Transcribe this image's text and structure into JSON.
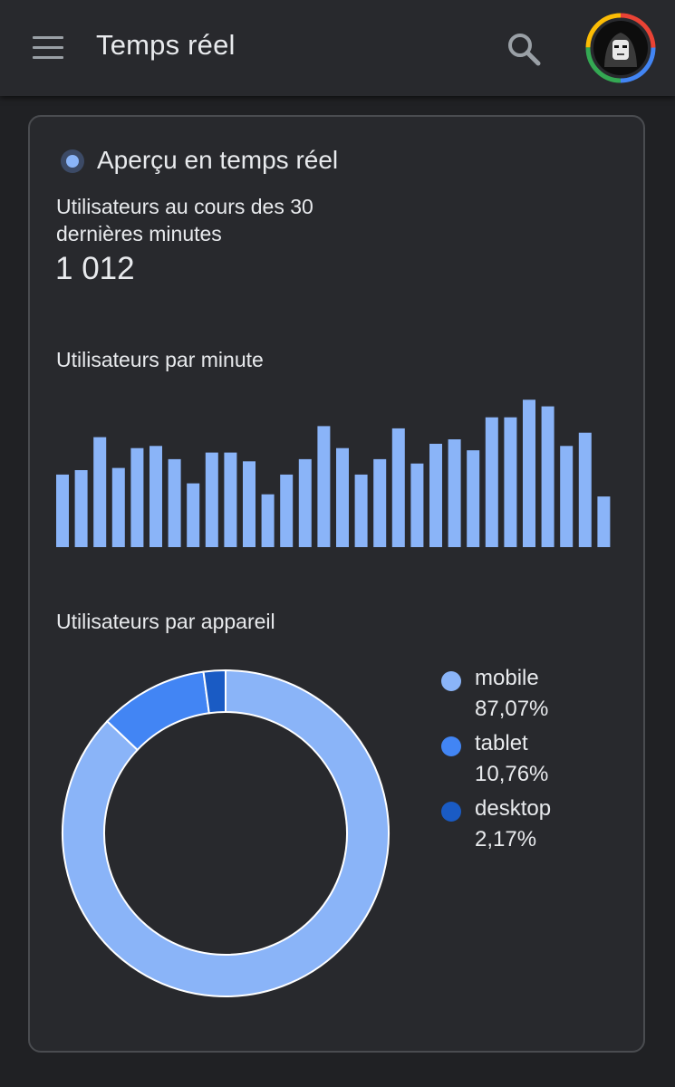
{
  "header": {
    "title": "Temps réel",
    "menu_icon": "hamburger-menu-icon",
    "search_icon": "search-icon",
    "avatar_icon": "user-avatar"
  },
  "card": {
    "title": "Aperçu en temps réel",
    "users_label": "Utilisateurs au cours des 30 dernières minutes",
    "users_value": "1 012",
    "per_minute_label": "Utilisateurs par minute",
    "per_device_label": "Utilisateurs par appareil"
  },
  "colors": {
    "mobile": "#8ab4f8",
    "tablet": "#4285f4",
    "desktop": "#1a5bc4",
    "bar": "#8ab4f8"
  },
  "chart_data": [
    {
      "type": "bar",
      "title": "Utilisateurs par minute",
      "values": [
        33,
        35,
        50,
        36,
        45,
        46,
        40,
        29,
        43,
        43,
        39,
        24,
        33,
        40,
        55,
        45,
        33,
        40,
        54,
        38,
        47,
        49,
        44,
        59,
        59,
        67,
        64,
        46,
        52,
        23
      ],
      "ylim": [
        0,
        70
      ],
      "grid": false,
      "axes_visible": false
    },
    {
      "type": "pie",
      "donut": true,
      "title": "Utilisateurs par appareil",
      "legend_position": "right",
      "slices": [
        {
          "label": "mobile",
          "value": 87.07,
          "display": "87,07%"
        },
        {
          "label": "tablet",
          "value": 10.76,
          "display": "10,76%"
        },
        {
          "label": "desktop",
          "value": 2.17,
          "display": "2,17%"
        }
      ]
    }
  ]
}
